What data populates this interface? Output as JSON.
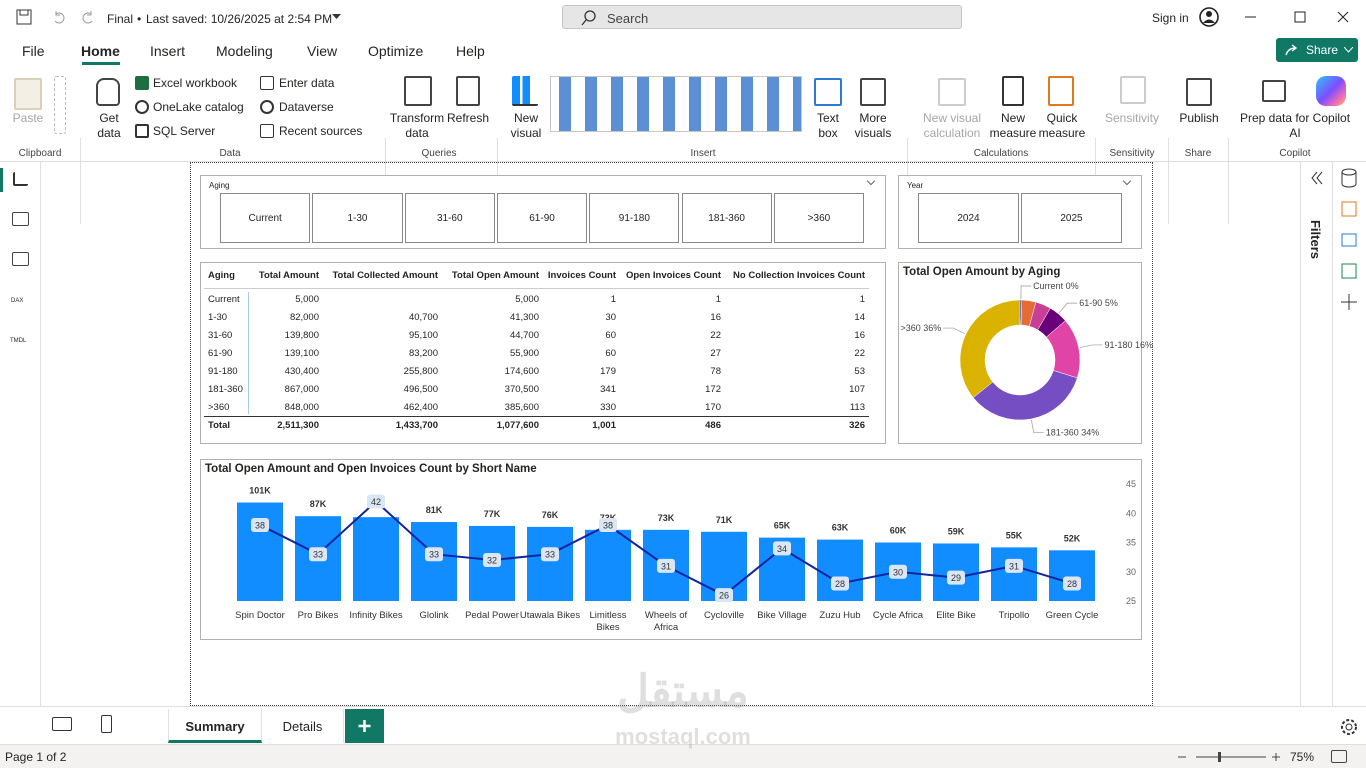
{
  "title_bar": {
    "file": "Final",
    "saved": "Last saved: 10/26/2025 at 2:54 PM",
    "search": "Search",
    "sign_in": "Sign in"
  },
  "menu": [
    "File",
    "Home",
    "Insert",
    "Modeling",
    "View",
    "Optimize",
    "Help"
  ],
  "share": "Share",
  "ribbon": {
    "paste": "Paste",
    "get_data": "Get data",
    "excel": "Excel workbook",
    "onelake": "OneLake catalog",
    "sql": "SQL Server",
    "enter_data": "Enter data",
    "dataverse": "Dataverse",
    "recent": "Recent sources",
    "transform": "Transform data",
    "refresh": "Refresh",
    "new_visual": "New visual",
    "text_box": "Text box",
    "more_visuals": "More visuals",
    "visual_calc": "New visual calculation",
    "new_measure": "New measure",
    "quick_measure": "Quick measure",
    "sensitivity": "Sensitivity",
    "publish": "Publish",
    "copilot": "Prep data for Copilot AI",
    "groups": [
      "Clipboard",
      "Data",
      "Queries",
      "Insert",
      "Calculations",
      "Sensitivity",
      "Share",
      "Copilot"
    ]
  },
  "nav": [
    "DAX",
    "TMDL"
  ],
  "filters": "Filters",
  "slicers": [
    {
      "title": "Aging",
      "items": [
        "Current",
        "1-30",
        "31-60",
        "61-90",
        "91-180",
        "181-360",
        ">360"
      ]
    },
    {
      "title": "Year",
      "items": [
        "2024",
        "2025"
      ]
    }
  ],
  "table": {
    "columns": [
      "Aging",
      "Total Amount",
      "Total Collected Amount",
      "Total Open Amount",
      "Invoices Count",
      "Open Invoices Count",
      "No Collection Invoices Count"
    ],
    "rows": [
      [
        "Current",
        "5,000",
        null,
        "5,000",
        "1",
        "1",
        "1"
      ],
      [
        "1-30",
        "82,000",
        "40,700",
        "41,300",
        "30",
        "16",
        "14"
      ],
      [
        "31-60",
        "139,800",
        "95,100",
        "44,700",
        "60",
        "22",
        "16"
      ],
      [
        "61-90",
        "139,100",
        "83,200",
        "55,900",
        "60",
        "27",
        "22"
      ],
      [
        "91-180",
        "430,400",
        "255,800",
        "174,600",
        "179",
        "78",
        "53"
      ],
      [
        "181-360",
        "867,000",
        "496,500",
        "370,500",
        "341",
        "172",
        "107"
      ],
      [
        ">360",
        "848,000",
        "462,400",
        "385,600",
        "330",
        "170",
        "113"
      ]
    ],
    "total": [
      "Total",
      "2,511,300",
      "1,433,700",
      "1,077,600",
      "1,001",
      "486",
      "326"
    ]
  },
  "chart_data": [
    {
      "type": "donut",
      "title": "Total Open Amount by Aging",
      "categories": [
        "Current",
        null,
        null,
        "61-90",
        "91-180",
        "181-360",
        ">360"
      ],
      "values": [
        0.46,
        3.83,
        4.15,
        5.19,
        16.2,
        34.38,
        35.78
      ],
      "value_labels": [
        "0%",
        null,
        null,
        "5%",
        "16%",
        "34%",
        "36%"
      ],
      "colors": [
        "#12239e",
        "#e66c37",
        "#c83d95",
        "#6b007b",
        "#e044a7",
        "#744ec2",
        "#d9b300"
      ]
    },
    {
      "type": "combo",
      "title": "Total Open Amount and Open Invoices Count by Short Name",
      "categories": [
        "Spin Doctor",
        "Pro Bikes",
        "Infinity Bikes",
        "Glolink",
        "Pedal Power",
        "Utawala Bikes",
        "Limitless Bikes",
        "Wheels of Africa",
        "Cycloville",
        "Bike Village",
        "Zuzu Hub",
        "Cycle Africa",
        "Elite Bike",
        "Tripollo",
        "Green Cycle"
      ],
      "series": [
        {
          "type": "bar",
          "color": "#118dff",
          "values": [
            101000,
            87000,
            86000,
            81000,
            77000,
            76000,
            73000,
            73000,
            71000,
            65000,
            63000,
            60000,
            59000,
            55000,
            52000
          ],
          "value_labels": [
            "101K",
            "87K",
            "86K",
            "81K",
            "77K",
            "76K",
            "73K",
            "73K",
            "71K",
            "65K",
            "63K",
            "60K",
            "59K",
            "55K",
            "52K"
          ]
        },
        {
          "type": "line",
          "color": "#12239e",
          "axis": "y2",
          "values": [
            38,
            33,
            42,
            33,
            32,
            33,
            38,
            31,
            26,
            34,
            28,
            30,
            29,
            31,
            28
          ]
        }
      ],
      "ylim": [
        0,
        120000
      ],
      "y2lim": [
        25,
        45
      ],
      "y2ticks": [
        25,
        30,
        35,
        40,
        45
      ]
    }
  ],
  "tabs": [
    "Summary",
    "Details"
  ],
  "status": {
    "page": "Page 1 of 2",
    "zoom": "75%"
  },
  "watermark": [
    "مستقل",
    "mostaql.com"
  ]
}
